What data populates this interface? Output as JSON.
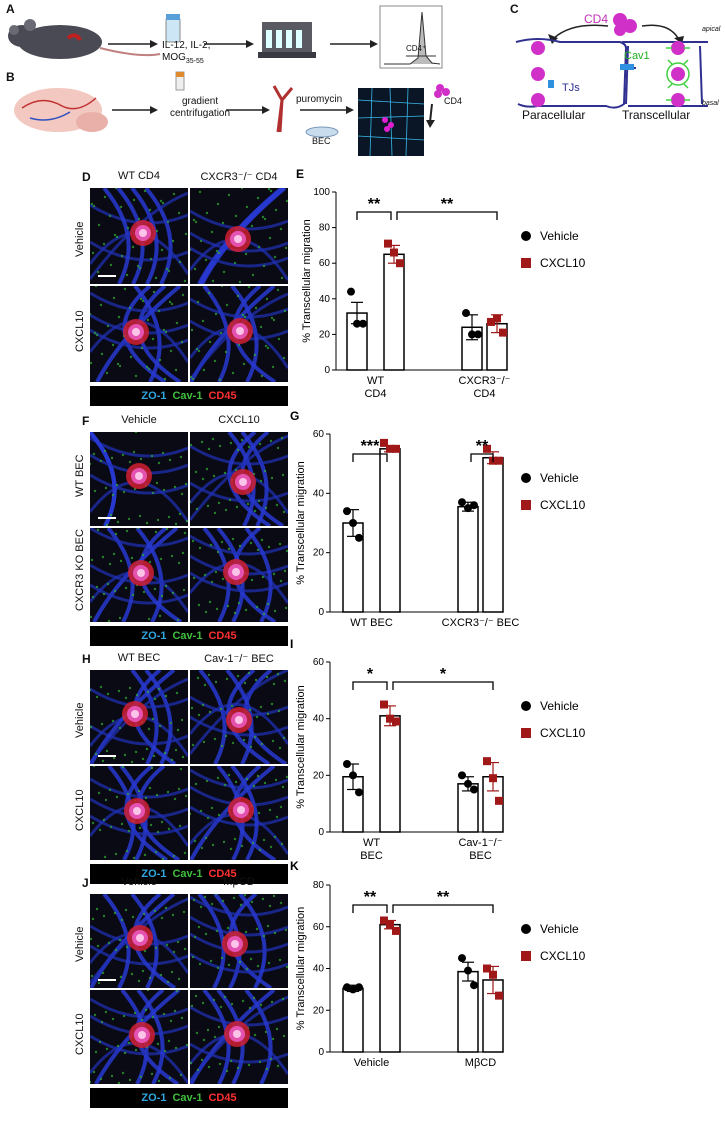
{
  "panels": {
    "A": {
      "letter": "A",
      "stim_lines": [
        "IL-12, IL-2,",
        "MOG"
      ],
      "stim_sub": "35-55",
      "gate_label": "CD4⁺"
    },
    "B": {
      "letter": "B",
      "gradient_lines": [
        "gradient",
        "centrifugation"
      ],
      "puromycin": "puromycin",
      "bec": "BEC",
      "cd4": "CD4"
    },
    "C": {
      "letter": "C",
      "cd4": "CD4",
      "cav1": "Cav1",
      "tjs": "TJs",
      "apical": "apical",
      "basal": "basal",
      "paracellular": "Paracellular",
      "transcellular": "Transcellular"
    },
    "D": {
      "letter": "D",
      "cols": [
        "WT CD4",
        "CXCR3⁻/⁻ CD4"
      ],
      "rows": [
        "Vehicle",
        "CXCL10"
      ]
    },
    "F": {
      "letter": "F",
      "cols": [
        "Vehicle",
        "CXCL10"
      ],
      "rows": [
        "WT BEC",
        "CXCR3 KO BEC"
      ]
    },
    "H": {
      "letter": "H",
      "cols": [
        "WT BEC",
        "Cav-1⁻/⁻ BEC"
      ],
      "rows": [
        "Vehicle",
        "CXCL10"
      ]
    },
    "J": {
      "letter": "J",
      "cols": [
        "Vehicle",
        "MβCD"
      ],
      "rows": [
        "Vehicle",
        "CXCL10"
      ]
    }
  },
  "stain_legend": {
    "zo1": "ZO-1",
    "cav1": "Cav-1",
    "cd45": "CD45"
  },
  "legend": {
    "vehicle": "Vehicle",
    "cxcl10": "CXCL10"
  },
  "colors": {
    "vehicle": "#000000",
    "cxcl10": "#a01818",
    "zo1": "#2fa8e0",
    "cav1": "#3fbf3f",
    "cd45": "#ff3030",
    "membrane": "#3a3a9a",
    "magenta": "#e020d0"
  },
  "chart_data": [
    {
      "panel": "E",
      "type": "bar",
      "ylabel": "% Transcellular migration",
      "ylim": [
        0,
        100
      ],
      "yticks": [
        0,
        20,
        40,
        60,
        80,
        100
      ],
      "groups": [
        [
          "WT",
          "CD4"
        ],
        [
          "CXCR3⁻/⁻",
          "CD4"
        ]
      ],
      "series": [
        {
          "name": "Vehicle",
          "values": [
            32,
            24
          ]
        },
        {
          "name": "CXCL10",
          "values": [
            65,
            26
          ]
        }
      ],
      "errors": [
        [
          6,
          7
        ],
        [
          5,
          5
        ]
      ],
      "points": [
        [
          [
            44,
            26,
            26
          ],
          [
            32,
            20,
            20
          ]
        ],
        [
          [
            71,
            66,
            60
          ],
          [
            27,
            29,
            21
          ]
        ]
      ],
      "significance": [
        {
          "label": "**",
          "from": [
            0,
            0
          ],
          "to": [
            0,
            1
          ]
        },
        {
          "label": "**",
          "from": [
            0,
            1
          ],
          "to": [
            1,
            1
          ]
        }
      ]
    },
    {
      "panel": "G",
      "type": "bar",
      "ylabel": "% Transcellular migration",
      "ylim": [
        0,
        60
      ],
      "yticks": [
        0,
        20,
        40,
        60
      ],
      "groups": [
        [
          "WT BEC"
        ],
        [
          "CXCR3⁻/⁻ BEC"
        ]
      ],
      "series": [
        {
          "name": "Vehicle",
          "values": [
            30,
            35.5
          ]
        },
        {
          "name": "CXCL10",
          "values": [
            55,
            52
          ]
        }
      ],
      "errors": [
        [
          4.5,
          1.5
        ],
        [
          1,
          2
        ]
      ],
      "points": [
        [
          [
            34,
            30,
            25
          ],
          [
            37,
            35,
            36
          ]
        ],
        [
          [
            57,
            55,
            55
          ],
          [
            55,
            51,
            51
          ]
        ]
      ],
      "significance": [
        {
          "label": "***",
          "from": [
            0,
            0
          ],
          "to": [
            0,
            1
          ]
        },
        {
          "label": "**",
          "from": [
            1,
            0
          ],
          "to": [
            1,
            1
          ]
        }
      ]
    },
    {
      "panel": "I",
      "type": "bar",
      "ylabel": "% Transcellular migration",
      "ylim": [
        0,
        60
      ],
      "yticks": [
        0,
        20,
        40,
        60
      ],
      "groups": [
        [
          "WT",
          "BEC"
        ],
        [
          "Cav-1⁻/⁻",
          "BEC"
        ]
      ],
      "series": [
        {
          "name": "Vehicle",
          "values": [
            19.5,
            17
          ]
        },
        {
          "name": "CXCL10",
          "values": [
            41,
            19.5
          ]
        }
      ],
      "errors": [
        [
          4.5,
          2.5
        ],
        [
          3.5,
          5
        ]
      ],
      "points": [
        [
          [
            24,
            20,
            14
          ],
          [
            20,
            17,
            15
          ]
        ],
        [
          [
            45,
            40,
            39
          ],
          [
            25,
            19,
            11
          ]
        ]
      ],
      "significance": [
        {
          "label": "*",
          "from": [
            0,
            0
          ],
          "to": [
            0,
            1
          ]
        },
        {
          "label": "*",
          "from": [
            0,
            1
          ],
          "to": [
            1,
            1
          ]
        }
      ]
    },
    {
      "panel": "K",
      "type": "bar",
      "ylabel": "% Transcellular migration",
      "ylim": [
        0,
        80
      ],
      "yticks": [
        0,
        20,
        40,
        60,
        80
      ],
      "groups": [
        [
          "Vehicle"
        ],
        [
          "MβCD"
        ]
      ],
      "series": [
        {
          "name": "Vehicle",
          "values": [
            30.5,
            38.5
          ]
        },
        {
          "name": "CXCL10",
          "values": [
            61,
            34.5
          ]
        }
      ],
      "errors": [
        [
          1.5,
          4.5
        ],
        [
          2,
          6.5
        ]
      ],
      "points": [
        [
          [
            31,
            30,
            31
          ],
          [
            45,
            39,
            32
          ]
        ],
        [
          [
            63,
            61,
            58
          ],
          [
            40,
            37,
            27
          ]
        ]
      ],
      "significance": [
        {
          "label": "**",
          "from": [
            0,
            0
          ],
          "to": [
            0,
            1
          ]
        },
        {
          "label": "**",
          "from": [
            0,
            1
          ],
          "to": [
            1,
            1
          ]
        }
      ]
    }
  ]
}
